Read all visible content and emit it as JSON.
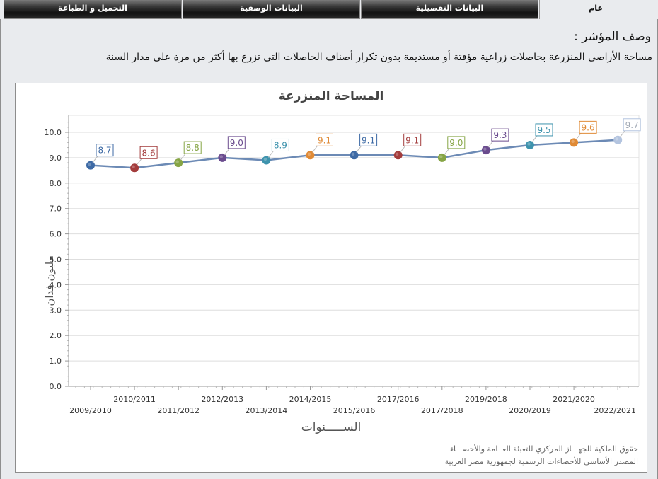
{
  "tabs": [
    {
      "label": "عام",
      "active": true
    },
    {
      "label": "البيانات التفصيلية",
      "active": false
    },
    {
      "label": "البيانات الوصفية",
      "active": false
    },
    {
      "label": "التحميل و الطباعة",
      "active": false
    }
  ],
  "description": {
    "title": "وصف المؤشر :",
    "text": "مساحة الأراضى المنزرعة بحاصلات زراعية مؤقتة أو مستديمة بدون تكرار أصناف الحاصلات التى تزرع بها أكثر من مرة على مدار السنة"
  },
  "footer": {
    "line1": "حقوق الملكية للجهـــاز المركزي للتعبئة العــامة والأحصـــاء",
    "line2": "المصدر الأساسي للأحصاءات الرسمية لجمهورية مصر العربية"
  },
  "chart_data": {
    "type": "line",
    "title": "المساحة المنزرعة",
    "xlabel": "الســـــنوات",
    "ylabel": "مليون فدان",
    "categories": [
      "2009/2010",
      "2010/2011",
      "2011/2012",
      "2012/2013",
      "2013/2014",
      "2014/2015",
      "2015/2016",
      "2017/2016",
      "2017/2018",
      "2019/2018",
      "2020/2019",
      "2021/2020",
      "2022/2021"
    ],
    "values": [
      8.7,
      8.6,
      8.8,
      9.0,
      8.9,
      9.1,
      9.1,
      9.1,
      9.0,
      9.3,
      9.5,
      9.6,
      9.7
    ],
    "labels": [
      "8.7",
      "8.6",
      "8.8",
      "9.0",
      "8.9",
      "9.1",
      "9.1",
      "9.1",
      "9.0",
      "9.3",
      "9.5",
      "9.6",
      "9.7"
    ],
    "point_colors": [
      "#3d6aa5",
      "#a33c3c",
      "#86a545",
      "#6a4b8e",
      "#3e93ad",
      "#e08a35",
      "#3d6aa5",
      "#a33c3c",
      "#86a545",
      "#6a4b8e",
      "#3e93ad",
      "#e08a35",
      "#b3c4df"
    ],
    "line_color": "#6c8ab5",
    "yticks": [
      "0.0",
      "1.0",
      "2.0",
      "3.0",
      "4.0",
      "5.0",
      "6.0",
      "7.0",
      "8.0",
      "9.0",
      "10.0"
    ],
    "ylim": [
      0,
      10.7
    ],
    "grid": true,
    "legend": "none"
  }
}
